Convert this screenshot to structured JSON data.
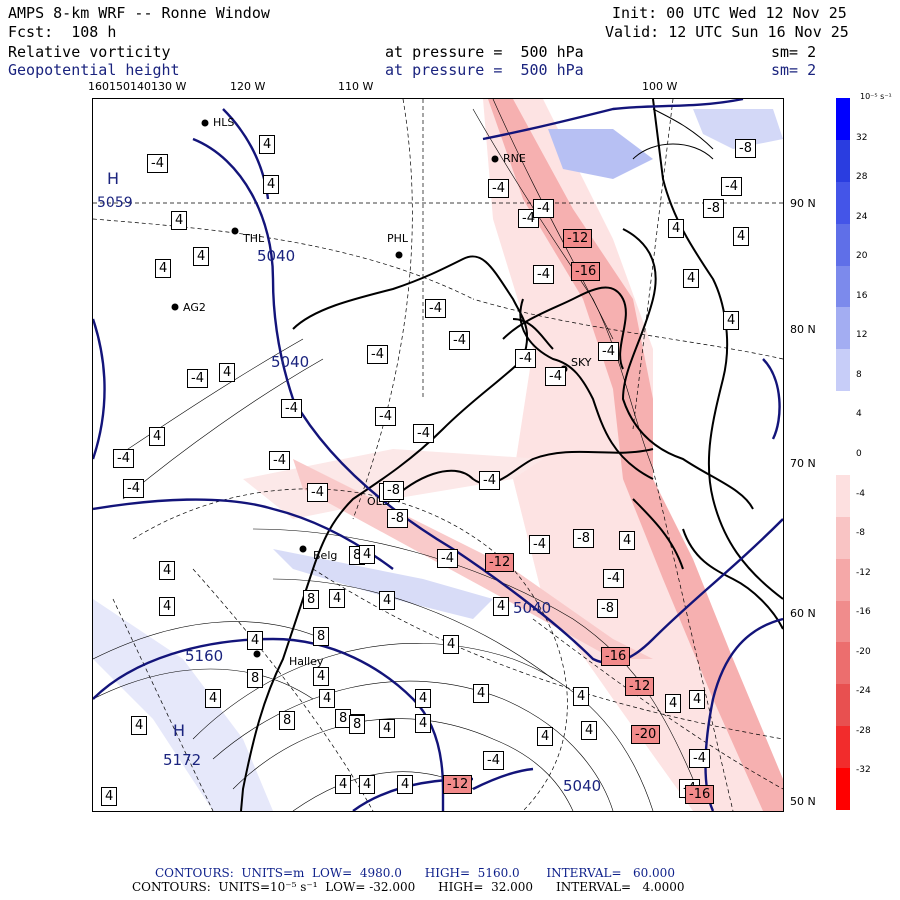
{
  "header": {
    "title": "AMPS 8-km WRF -- Ronne Window",
    "init": "Init: 00 UTC Wed 12 Nov 25",
    "fcst": "Fcst:  108 h",
    "valid": "Valid: 12 UTC Sun 16 Nov 25",
    "field1_name": "Relative vorticity",
    "field1_level": "at pressure =  500 hPa",
    "field1_smooth": "sm= 2",
    "field2_name": "Geopotential height",
    "field2_level": "at pressure =  500 hPa",
    "field2_smooth": "sm= 2"
  },
  "lon_labels": [
    "160150140130 W",
    "120 W",
    "110 W",
    "100 W"
  ],
  "lat_labels": [
    "90 N",
    "80 N",
    "70 N",
    "60 N",
    "50 N"
  ],
  "stations": [
    "HLS",
    "RNE",
    "THL",
    "PHL",
    "AG2",
    "SKY",
    "OLD",
    "Belg",
    "Halley"
  ],
  "height_labels": [
    "5059",
    "5040",
    "5040",
    "5040",
    "5160",
    "5172",
    "5040"
  ],
  "hl_markers": [
    "H",
    "H"
  ],
  "vort_labels": [
    "4",
    "-4",
    "-8",
    "-12",
    "-16",
    "-20",
    "8"
  ],
  "colorbar": {
    "units": "10⁻⁵ s⁻¹",
    "ticks": [
      "32",
      "28",
      "24",
      "20",
      "16",
      "12",
      "8",
      "4",
      "0",
      "-4",
      "-8",
      "-12",
      "-16",
      "-20",
      "-24",
      "-28",
      "-32"
    ],
    "colors": [
      "#0000ff",
      "#2a3de0",
      "#4455e8",
      "#5f6fe8",
      "#7c8aec",
      "#a3adf2",
      "#c7cdf8",
      "#ffffff",
      "#ffffff",
      "#fde0e0",
      "#f9c4c4",
      "#f5a8a8",
      "#f08c8c",
      "#ec6e6e",
      "#e85050",
      "#f22c2c",
      "#ff0000"
    ]
  },
  "footer": {
    "line1": "CONTOURS:  UNITS=m  LOW=  4980.0      HIGH=  5160.0       INTERVAL=   60.000",
    "line2": "CONTOURS:  UNITS=10⁻⁵ s⁻¹  LOW= -32.000      HIGH=  32.000      INTERVAL=   4.0000"
  }
}
